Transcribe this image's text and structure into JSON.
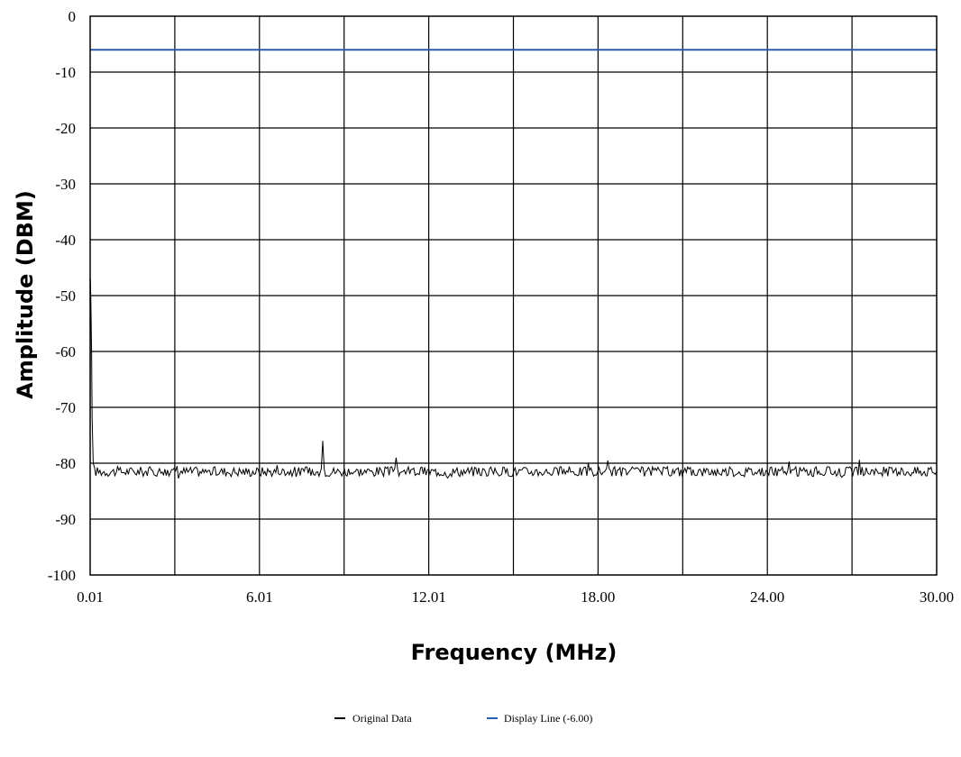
{
  "chart_data": {
    "type": "line",
    "xlabel": "Frequency (MHz)",
    "ylabel": "Amplitude (DBM)",
    "xlim": [
      0.01,
      30.0
    ],
    "ylim": [
      -100,
      0
    ],
    "x_ticks": [
      "0.01",
      "6.01",
      "12.01",
      "18.00",
      "24.00",
      "30.00"
    ],
    "x_tick_values": [
      0.01,
      6.01,
      12.01,
      18.0,
      24.0,
      30.0
    ],
    "x_gridlines": 10,
    "y_ticks": [
      0,
      -10,
      -20,
      -30,
      -40,
      -50,
      -60,
      -70,
      -80,
      -90,
      -100
    ],
    "grid": true,
    "legend_position": "bottom",
    "series": [
      {
        "name": "Original Data",
        "color": "#000000",
        "noise_floor_dbm": -81.5,
        "points": [
          {
            "x": 0.01,
            "y": -80
          },
          {
            "x": 0.02,
            "y": -47
          },
          {
            "x": 0.04,
            "y": -52
          },
          {
            "x": 0.06,
            "y": -60
          },
          {
            "x": 0.08,
            "y": -72
          },
          {
            "x": 0.12,
            "y": -80
          },
          {
            "x": 8.2,
            "y": -81
          },
          {
            "x": 8.25,
            "y": -76
          },
          {
            "x": 8.3,
            "y": -81
          },
          {
            "x": 10.8,
            "y": -81
          },
          {
            "x": 10.85,
            "y": -79
          },
          {
            "x": 10.9,
            "y": -81
          },
          {
            "x": 18.3,
            "y": -81
          },
          {
            "x": 18.35,
            "y": -79.5
          },
          {
            "x": 18.4,
            "y": -81
          },
          {
            "x": 30.0,
            "y": -81.5
          }
        ]
      },
      {
        "name": "Display Line (-6.00)",
        "color": "#2b5cad",
        "constant": -6.0
      }
    ]
  }
}
